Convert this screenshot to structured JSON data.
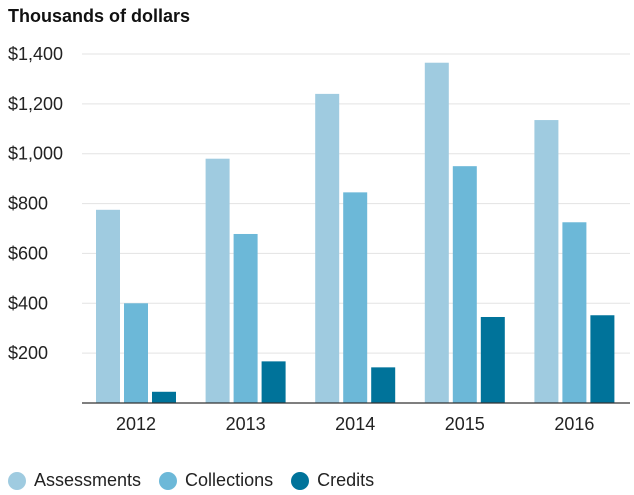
{
  "chart_data": {
    "type": "bar",
    "title": "Thousands of dollars",
    "categories": [
      "2012",
      "2013",
      "2014",
      "2015",
      "2016"
    ],
    "series": [
      {
        "name": "Assessments",
        "color": "#9fcbe0",
        "values": [
          775,
          980,
          1240,
          1365,
          1135
        ]
      },
      {
        "name": "Collections",
        "color": "#6cb8d8",
        "values": [
          400,
          678,
          845,
          950,
          725
        ]
      },
      {
        "name": "Credits",
        "color": "#00739a",
        "values": [
          45,
          167,
          143,
          345,
          352
        ]
      }
    ],
    "yticks": [
      "$200",
      "$400",
      "$600",
      "$800",
      "$1,000",
      "$1,200",
      "$1,400"
    ],
    "ylim": [
      0,
      1400
    ],
    "grid": true,
    "legend_position": "bottom-left"
  }
}
